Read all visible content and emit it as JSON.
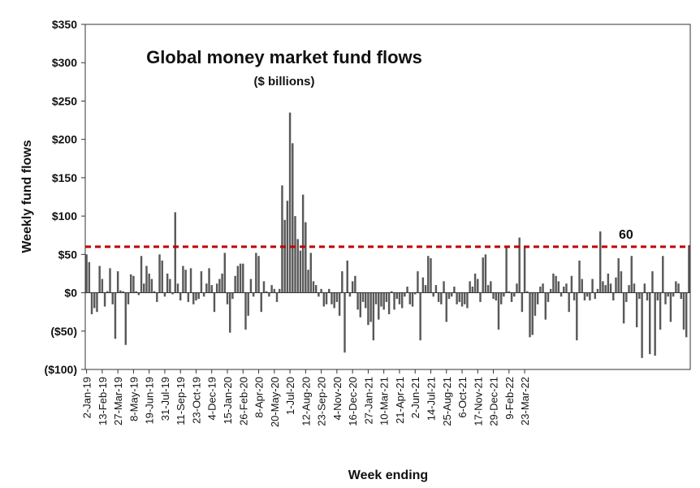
{
  "chart_data": {
    "type": "bar",
    "title": "Global money market fund flows",
    "subtitle": "($ billions)",
    "xlabel": "Week ending",
    "ylabel": "Weekly fund flows",
    "ylim": [
      -100,
      350
    ],
    "yticks": [
      {
        "value": 350,
        "label": "$350"
      },
      {
        "value": 300,
        "label": "$300"
      },
      {
        "value": 250,
        "label": "$250"
      },
      {
        "value": 200,
        "label": "$200"
      },
      {
        "value": 150,
        "label": "$150"
      },
      {
        "value": 100,
        "label": "$100"
      },
      {
        "value": 50,
        "label": "$50"
      },
      {
        "value": 0,
        "label": "$0"
      },
      {
        "value": -50,
        "label": "($50)"
      },
      {
        "value": -100,
        "label": "($100)"
      }
    ],
    "x_tick_labels": [
      "2-Jan-19",
      "13-Feb-19",
      "27-Mar-19",
      "8-May-19",
      "19-Jun-19",
      "31-Jul-19",
      "11-Sep-19",
      "23-Oct-19",
      "4-Dec-19",
      "15-Jan-20",
      "26-Feb-20",
      "8-Apr-20",
      "20-May-20",
      "1-Jul-20",
      "12-Aug-20",
      "23-Sep-20",
      "4-Nov-20",
      "16-Dec-20",
      "27-Jan-21",
      "10-Mar-21",
      "21-Apr-21",
      "2-Jun-21",
      "14-Jul-21",
      "25-Aug-21",
      "6-Oct-21",
      "17-Nov-21",
      "29-Dec-21",
      "9-Feb-22",
      "23-Mar-22"
    ],
    "tick_spacing_weeks": 6,
    "reference_line": {
      "value": 60,
      "label": "60",
      "color": "#c00000"
    },
    "bar_color": "#595959",
    "values": [
      50,
      40,
      -28,
      -20,
      -25,
      35,
      18,
      -18,
      2,
      32,
      -15,
      -60,
      28,
      3,
      2,
      -68,
      -15,
      24,
      22,
      2,
      -3,
      48,
      12,
      35,
      25,
      18,
      2,
      -12,
      50,
      42,
      -5,
      25,
      18,
      -2,
      105,
      12,
      -10,
      35,
      30,
      -12,
      32,
      -15,
      -10,
      -8,
      28,
      -5,
      12,
      32,
      10,
      -25,
      12,
      18,
      25,
      52,
      -15,
      -52,
      -8,
      22,
      35,
      38,
      38,
      -48,
      -30,
      18,
      -5,
      52,
      48,
      -25,
      15,
      2,
      -5,
      10,
      5,
      -12,
      5,
      140,
      95,
      120,
      235,
      195,
      100,
      70,
      55,
      128,
      92,
      30,
      52,
      15,
      10,
      -5,
      5,
      -18,
      -15,
      5,
      -15,
      -20,
      -12,
      -30,
      28,
      -78,
      42,
      -5,
      15,
      22,
      -22,
      -32,
      -12,
      -20,
      -42,
      -38,
      -62,
      -15,
      -35,
      -18,
      -22,
      -12,
      -28,
      2,
      -22,
      -8,
      -15,
      -20,
      -5,
      8,
      -15,
      -18,
      -2,
      28,
      -62,
      20,
      10,
      48,
      45,
      -5,
      10,
      -12,
      -15,
      15,
      -38,
      -8,
      -5,
      8,
      -15,
      -12,
      -18,
      -15,
      -20,
      15,
      8,
      25,
      18,
      -12,
      46,
      50,
      10,
      15,
      -8,
      -10,
      -48,
      -15,
      -5,
      60,
      2,
      -12,
      -5,
      12,
      72,
      -25,
      60,
      2,
      -58,
      -55,
      -30,
      -15,
      8,
      12,
      -35,
      -12,
      5,
      25,
      22,
      15,
      -5,
      8,
      12,
      -25,
      22,
      -10,
      -62,
      42,
      18,
      -10,
      -5,
      -10,
      18,
      -8,
      5,
      80,
      15,
      10,
      25,
      12,
      -10,
      20,
      45,
      28,
      -40,
      -12,
      10,
      48,
      12,
      -45,
      -8,
      -85,
      12,
      -10,
      -80,
      28,
      -82,
      -10,
      -48,
      48,
      -15,
      -5,
      -38,
      -5,
      15,
      12,
      -8,
      -48,
      -58,
      62
    ]
  }
}
